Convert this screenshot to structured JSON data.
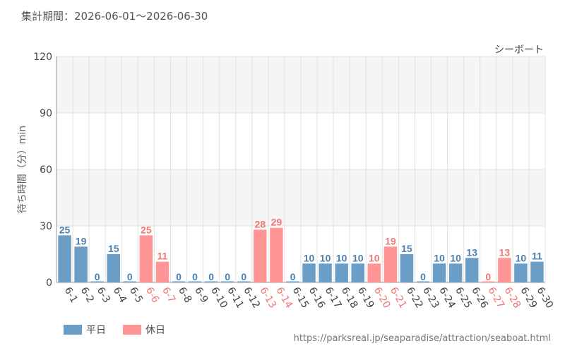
{
  "header": {
    "period_label": "集計期間：2026-06-01～2026-06-30"
  },
  "footer": {
    "url": "https://parksreal.jp/seaparadise/attraction/seaboat.html"
  },
  "colors": {
    "weekday": "#6a9ec6",
    "holiday": "#ff9595",
    "weekday_text": "#4a7fb0",
    "holiday_text": "#ef7676",
    "axis_text": "#444444",
    "grid": "#e2e2e2",
    "band": "#f5f5f5"
  },
  "chart_data": {
    "type": "bar",
    "title": "シーボート",
    "ylabel": "待ち時間（分）min",
    "xlabel": "",
    "ylim": [
      0,
      120
    ],
    "yticks": [
      0,
      30,
      60,
      90,
      120
    ],
    "grid": true,
    "legend_position": "bottom-left",
    "legend": [
      {
        "label": "平日",
        "key": "weekday"
      },
      {
        "label": "休日",
        "key": "holiday"
      }
    ],
    "categories": [
      "6-1",
      "6-2",
      "6-3",
      "6-4",
      "6-5",
      "6-6",
      "6-7",
      "6-8",
      "6-9",
      "6-10",
      "6-11",
      "6-12",
      "6-13",
      "6-14",
      "6-15",
      "6-16",
      "6-17",
      "6-18",
      "6-19",
      "6-20",
      "6-21",
      "6-22",
      "6-23",
      "6-24",
      "6-25",
      "6-26",
      "6-27",
      "6-28",
      "6-29",
      "6-30"
    ],
    "values": [
      25,
      19,
      0,
      15,
      0,
      25,
      11,
      0,
      0,
      0,
      0,
      0,
      28,
      29,
      0,
      10,
      10,
      10,
      10,
      10,
      19,
      15,
      0,
      10,
      10,
      13,
      0,
      13,
      10,
      11
    ],
    "day_type": [
      "weekday",
      "weekday",
      "weekday",
      "weekday",
      "weekday",
      "holiday",
      "holiday",
      "weekday",
      "weekday",
      "weekday",
      "weekday",
      "weekday",
      "holiday",
      "holiday",
      "weekday",
      "weekday",
      "weekday",
      "weekday",
      "weekday",
      "holiday",
      "holiday",
      "weekday",
      "weekday",
      "weekday",
      "weekday",
      "weekday",
      "holiday",
      "holiday",
      "weekday",
      "weekday"
    ]
  }
}
